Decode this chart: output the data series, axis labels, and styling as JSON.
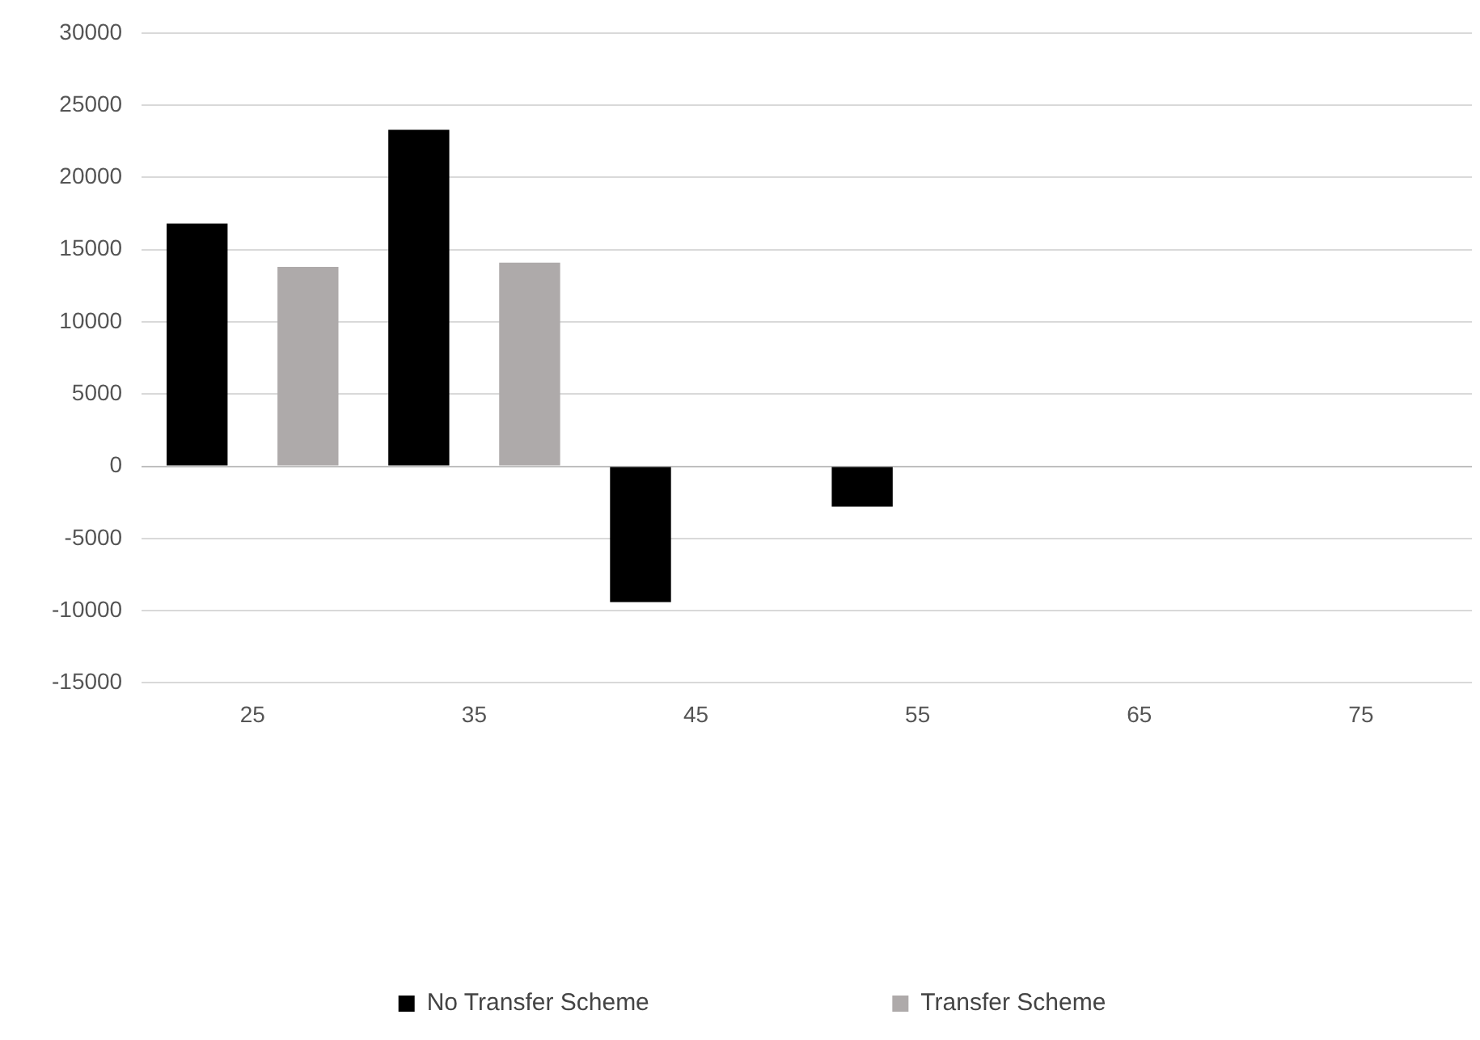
{
  "chart_data": {
    "type": "bar",
    "categories": [
      "25",
      "35",
      "45",
      "55",
      "65",
      "75"
    ],
    "series": [
      {
        "name": "No Transfer Scheme",
        "color": "#000000",
        "values": [
          16800,
          23300,
          -9400,
          -2800,
          0,
          0
        ]
      },
      {
        "name": "Transfer Scheme",
        "color": "#aeaaaa",
        "values": [
          13800,
          14100,
          0,
          0,
          0,
          0
        ]
      }
    ],
    "ylim": [
      -15000,
      30000
    ],
    "yticks": [
      -15000,
      -10000,
      -5000,
      0,
      5000,
      10000,
      15000,
      20000,
      25000,
      30000
    ],
    "grid": "y",
    "legend": "bottom"
  }
}
